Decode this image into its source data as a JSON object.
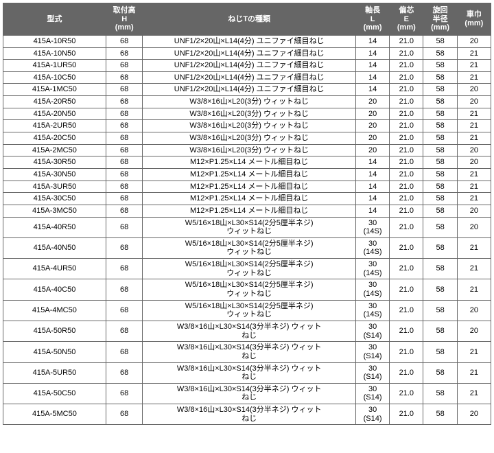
{
  "headers": {
    "model": "型式",
    "h": "取付高\nH\n(mm)",
    "type": "ねじTの種類",
    "l": "軸長\nL\n(mm)",
    "e": "偏芯\nE\n(mm)",
    "r": "旋回\n半径\n(mm)",
    "w": "車巾\n(mm)"
  },
  "rows": [
    {
      "model": "415A-10R50",
      "h": "68",
      "type": "UNF1/2×20山×L14(4分) ユニファイ細目ねじ",
      "l": "14",
      "e": "21.0",
      "r": "58",
      "w": "20"
    },
    {
      "model": "415A-10N50",
      "h": "68",
      "type": "UNF1/2×20山×L14(4分) ユニファイ細目ねじ",
      "l": "14",
      "e": "21.0",
      "r": "58",
      "w": "21"
    },
    {
      "model": "415A-1UR50",
      "h": "68",
      "type": "UNF1/2×20山×L14(4分) ユニファイ細目ねじ",
      "l": "14",
      "e": "21.0",
      "r": "58",
      "w": "21"
    },
    {
      "model": "415A-10C50",
      "h": "68",
      "type": "UNF1/2×20山×L14(4分) ユニファイ細目ねじ",
      "l": "14",
      "e": "21.0",
      "r": "58",
      "w": "21"
    },
    {
      "model": "415A-1MC50",
      "h": "68",
      "type": "UNF1/2×20山×L14(4分) ユニファイ細目ねじ",
      "l": "14",
      "e": "21.0",
      "r": "58",
      "w": "20"
    },
    {
      "model": "415A-20R50",
      "h": "68",
      "type": "W3/8×16山×L20(3分) ウィットねじ",
      "l": "20",
      "e": "21.0",
      "r": "58",
      "w": "20"
    },
    {
      "model": "415A-20N50",
      "h": "68",
      "type": "W3/8×16山×L20(3分) ウィットねじ",
      "l": "20",
      "e": "21.0",
      "r": "58",
      "w": "21"
    },
    {
      "model": "415A-2UR50",
      "h": "68",
      "type": "W3/8×16山×L20(3分) ウィットねじ",
      "l": "20",
      "e": "21.0",
      "r": "58",
      "w": "21"
    },
    {
      "model": "415A-20C50",
      "h": "68",
      "type": "W3/8×16山×L20(3分) ウィットねじ",
      "l": "20",
      "e": "21.0",
      "r": "58",
      "w": "21"
    },
    {
      "model": "415A-2MC50",
      "h": "68",
      "type": "W3/8×16山×L20(3分) ウィットねじ",
      "l": "20",
      "e": "21.0",
      "r": "58",
      "w": "20"
    },
    {
      "model": "415A-30R50",
      "h": "68",
      "type": "M12×P1.25×L14 メートル細目ねじ",
      "l": "14",
      "e": "21.0",
      "r": "58",
      "w": "20"
    },
    {
      "model": "415A-30N50",
      "h": "68",
      "type": "M12×P1.25×L14 メートル細目ねじ",
      "l": "14",
      "e": "21.0",
      "r": "58",
      "w": "21"
    },
    {
      "model": "415A-3UR50",
      "h": "68",
      "type": "M12×P1.25×L14 メートル細目ねじ",
      "l": "14",
      "e": "21.0",
      "r": "58",
      "w": "21"
    },
    {
      "model": "415A-30C50",
      "h": "68",
      "type": "M12×P1.25×L14 メートル細目ねじ",
      "l": "14",
      "e": "21.0",
      "r": "58",
      "w": "21"
    },
    {
      "model": "415A-3MC50",
      "h": "68",
      "type": "M12×P1.25×L14 メートル細目ねじ",
      "l": "14",
      "e": "21.0",
      "r": "58",
      "w": "20"
    },
    {
      "model": "415A-40R50",
      "h": "68",
      "type": "W5/16×18山×L30×S14(2分5厘半ネジ)\nウィットねじ",
      "l": "30\n(14S)",
      "e": "21.0",
      "r": "58",
      "w": "20"
    },
    {
      "model": "415A-40N50",
      "h": "68",
      "type": "W5/16×18山×L30×S14(2分5厘半ネジ)\nウィットねじ",
      "l": "30\n(14S)",
      "e": "21.0",
      "r": "58",
      "w": "21"
    },
    {
      "model": "415A-4UR50",
      "h": "68",
      "type": "W5/16×18山×L30×S14(2分5厘半ネジ)\nウィットねじ",
      "l": "30\n(14S)",
      "e": "21.0",
      "r": "58",
      "w": "21"
    },
    {
      "model": "415A-40C50",
      "h": "68",
      "type": "W5/16×18山×L30×S14(2分5厘半ネジ)\nウィットねじ",
      "l": "30\n(14S)",
      "e": "21.0",
      "r": "58",
      "w": "21"
    },
    {
      "model": "415A-4MC50",
      "h": "68",
      "type": "W5/16×18山×L30×S14(2分5厘半ネジ)\nウィットねじ",
      "l": "30\n(14S)",
      "e": "21.0",
      "r": "58",
      "w": "20"
    },
    {
      "model": "415A-50R50",
      "h": "68",
      "type": "W3/8×16山×L30×S14(3分半ネジ) ウィット\nねじ",
      "l": "30\n(S14)",
      "e": "21.0",
      "r": "58",
      "w": "20"
    },
    {
      "model": "415A-50N50",
      "h": "68",
      "type": "W3/8×16山×L30×S14(3分半ネジ) ウィット\nねじ",
      "l": "30\n(S14)",
      "e": "21.0",
      "r": "58",
      "w": "21"
    },
    {
      "model": "415A-5UR50",
      "h": "68",
      "type": "W3/8×16山×L30×S14(3分半ネジ) ウィット\nねじ",
      "l": "30\n(S14)",
      "e": "21.0",
      "r": "58",
      "w": "21"
    },
    {
      "model": "415A-50C50",
      "h": "68",
      "type": "W3/8×16山×L30×S14(3分半ネジ) ウィット\nねじ",
      "l": "30\n(S14)",
      "e": "21.0",
      "r": "58",
      "w": "21"
    },
    {
      "model": "415A-5MC50",
      "h": "68",
      "type": "W3/8×16山×L30×S14(3分半ネジ) ウィット\nねじ",
      "l": "30\n(S14)",
      "e": "21.0",
      "r": "58",
      "w": "20"
    }
  ]
}
